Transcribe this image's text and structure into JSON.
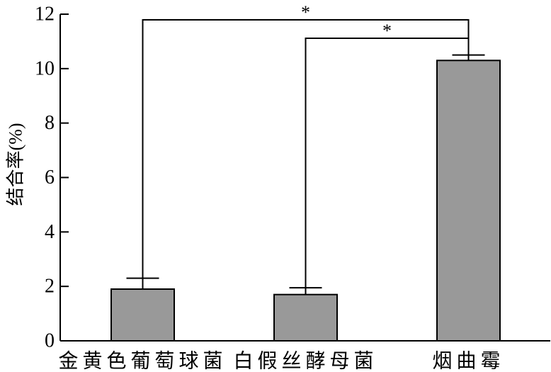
{
  "chart_data": {
    "type": "bar",
    "categories": [
      "金黄色葡萄球菌",
      "白假丝酵母菌",
      "烟曲霉"
    ],
    "values": [
      1.9,
      1.7,
      10.3
    ],
    "errors": [
      0.4,
      0.25,
      0.2
    ],
    "ylabel": "结合率(%)",
    "ylim": [
      0,
      12
    ],
    "yticks": [
      0,
      2,
      4,
      6,
      8,
      10,
      12
    ],
    "grid": false,
    "significance": [
      {
        "from": 0,
        "to": 2,
        "label": "*"
      },
      {
        "from": 1,
        "to": 2,
        "label": "*"
      }
    ],
    "colors": {
      "bar_fill": "#999999",
      "bar_edge": "#000000",
      "axis": "#000000"
    }
  }
}
